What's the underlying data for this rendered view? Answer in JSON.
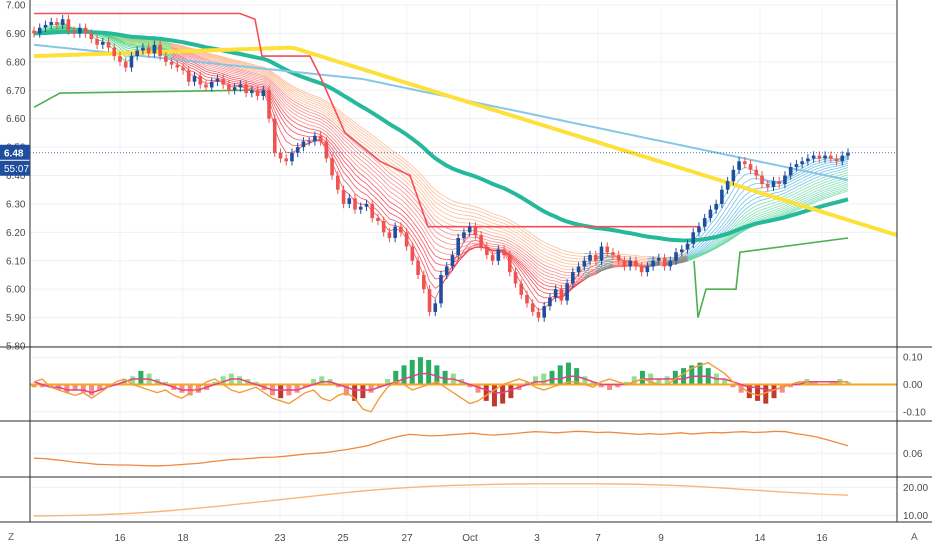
{
  "chart_data": [
    {
      "type": "candlestick",
      "title": "",
      "ylim": [
        5.8,
        7.0
      ],
      "yticks": [
        "7.00",
        "6.90",
        "6.80",
        "6.70",
        "6.60",
        "6.50",
        "6.40",
        "6.30",
        "6.20",
        "6.10",
        "6.00",
        "5.90",
        "5.80"
      ],
      "price_label": "6.48",
      "countdown_label": "55:07",
      "colors": {
        "up": "#1f4e9e",
        "down": "#ef5350",
        "ribbon_green": "#2ecc71",
        "ribbon_red": "#f23645",
        "ribbon_gray": "#8a8a8a",
        "slow_ma": "#26b89a",
        "mid_ma": "#87c6e6",
        "long_ma": "#fde13a",
        "stop_red": "#f44f57",
        "stop_green": "#4caf50"
      },
      "close": [
        6.9,
        6.92,
        6.93,
        6.94,
        6.93,
        6.95,
        6.91,
        6.9,
        6.92,
        6.9,
        6.88,
        6.86,
        6.87,
        6.85,
        6.82,
        6.8,
        6.78,
        6.82,
        6.84,
        6.85,
        6.83,
        6.86,
        6.82,
        6.8,
        6.79,
        6.78,
        6.77,
        6.73,
        6.75,
        6.72,
        6.71,
        6.73,
        6.74,
        6.72,
        6.7,
        6.71,
        6.72,
        6.69,
        6.7,
        6.68,
        6.7,
        6.6,
        6.48,
        6.46,
        6.45,
        6.48,
        6.5,
        6.52,
        6.52,
        6.54,
        6.52,
        6.46,
        6.4,
        6.35,
        6.3,
        6.32,
        6.28,
        6.29,
        6.3,
        6.25,
        6.24,
        6.2,
        6.18,
        6.22,
        6.2,
        6.15,
        6.1,
        6.05,
        6.0,
        5.92,
        5.95,
        6.05,
        6.08,
        6.12,
        6.18,
        6.2,
        6.22,
        6.19,
        6.15,
        6.12,
        6.1,
        6.14,
        6.12,
        6.06,
        6.02,
        5.98,
        5.95,
        5.92,
        5.9,
        5.94,
        5.97,
        6.0,
        5.96,
        6.02,
        6.06,
        6.08,
        6.1,
        6.12,
        6.1,
        6.15,
        6.13,
        6.12,
        6.1,
        6.08,
        6.1,
        6.08,
        6.06,
        6.08,
        6.1,
        6.11,
        6.08,
        6.1,
        6.13,
        6.14,
        6.16,
        6.2,
        6.22,
        6.25,
        6.28,
        6.3,
        6.35,
        6.38,
        6.42,
        6.45,
        6.44,
        6.42,
        6.4,
        6.37,
        6.36,
        6.38,
        6.37,
        6.4,
        6.43,
        6.44,
        6.45,
        6.46,
        6.47,
        6.46,
        6.47,
        6.46,
        6.45,
        6.47,
        6.48
      ]
    },
    {
      "type": "histogram",
      "ylim": [
        -0.13,
        0.13
      ],
      "yticks": [
        "0.10",
        "0.00",
        "-0.10"
      ],
      "values": [
        -0.01,
        -0.01,
        -0.01,
        -0.02,
        -0.03,
        -0.02,
        -0.03,
        -0.04,
        -0.02,
        -0.01,
        0.0,
        0.02,
        0.03,
        0.05,
        0.04,
        0.02,
        0.01,
        -0.02,
        -0.03,
        -0.04,
        -0.03,
        -0.02,
        0.01,
        0.03,
        0.04,
        0.03,
        0.02,
        0.01,
        -0.02,
        -0.04,
        -0.05,
        -0.04,
        -0.03,
        -0.01,
        0.02,
        0.03,
        0.02,
        -0.01,
        -0.04,
        -0.06,
        -0.05,
        -0.03,
        -0.01,
        0.02,
        0.05,
        0.07,
        0.09,
        0.1,
        0.09,
        0.07,
        0.05,
        0.04,
        0.02,
        -0.01,
        -0.03,
        -0.06,
        -0.08,
        -0.07,
        -0.05,
        -0.02,
        0.01,
        0.03,
        0.04,
        0.05,
        0.07,
        0.08,
        0.06,
        0.03,
        0.01,
        -0.01,
        -0.02,
        -0.01,
        0.01,
        0.03,
        0.05,
        0.04,
        0.02,
        0.03,
        0.05,
        0.06,
        0.07,
        0.08,
        0.06,
        0.04,
        0.02,
        -0.01,
        -0.03,
        -0.05,
        -0.06,
        -0.07,
        -0.05,
        -0.03,
        -0.01,
        0.01,
        0.02,
        0.01,
        0.0,
        0.01,
        0.02,
        0.01
      ],
      "line_a": [
        0.01,
        0.0,
        -0.01,
        -0.01,
        -0.02,
        -0.02,
        -0.02,
        -0.03,
        -0.02,
        -0.01,
        0.0,
        0.01,
        0.02,
        0.02,
        0.02,
        0.01,
        0.0,
        -0.01,
        -0.02,
        -0.02,
        -0.02,
        -0.01,
        0.0,
        0.01,
        0.02,
        0.02,
        0.01,
        0.0,
        -0.01,
        -0.02,
        -0.02,
        -0.02,
        -0.02,
        -0.01,
        0.0,
        0.01,
        0.01,
        0.0,
        -0.01,
        -0.02,
        -0.02,
        -0.02,
        -0.01,
        0.0,
        0.01,
        0.02,
        0.03,
        0.04,
        0.04,
        0.03,
        0.02,
        0.02,
        0.01,
        0.0,
        -0.01,
        -0.02,
        -0.03,
        -0.03,
        -0.02,
        -0.01,
        0.0,
        0.01,
        0.01,
        0.02,
        0.02,
        0.03,
        0.03,
        0.02,
        0.01,
        0.0,
        0.0,
        0.0,
        0.0,
        0.01,
        0.02,
        0.02,
        0.02,
        0.02,
        0.02,
        0.02,
        0.03,
        0.03,
        0.03,
        0.02,
        0.02,
        0.01,
        0.0,
        -0.01,
        -0.01,
        -0.02,
        -0.02,
        -0.01,
        0.0,
        0.0,
        0.01,
        0.01,
        0.01,
        0.01,
        0.01,
        0.01
      ],
      "line_b": [
        0.01,
        0.02,
        -0.01,
        -0.02,
        -0.03,
        -0.04,
        -0.03,
        -0.05,
        -0.03,
        -0.01,
        0.01,
        0.02,
        0.0,
        -0.01,
        -0.02,
        -0.03,
        -0.02,
        -0.04,
        -0.05,
        -0.03,
        -0.01,
        0.01,
        0.02,
        0.0,
        -0.02,
        -0.03,
        -0.02,
        -0.01,
        -0.03,
        -0.05,
        -0.06,
        -0.07,
        -0.05,
        -0.03,
        -0.02,
        -0.05,
        -0.06,
        -0.04,
        -0.03,
        -0.05,
        -0.09,
        -0.1,
        -0.05,
        -0.01,
        0.01,
        0.0,
        -0.02,
        -0.01,
        0.0,
        0.01,
        -0.01,
        -0.03,
        -0.05,
        -0.07,
        -0.06,
        -0.04,
        -0.02,
        0.0,
        0.01,
        0.02,
        0.01,
        -0.01,
        -0.02,
        -0.01,
        0.0,
        0.01,
        0.01,
        0.0,
        -0.01,
        0.01,
        0.02,
        0.01,
        0.0,
        0.01,
        0.02,
        0.01,
        0.0,
        0.0,
        0.02,
        0.04,
        0.06,
        0.07,
        0.08,
        0.06,
        0.04,
        0.01,
        -0.01,
        -0.03,
        -0.04,
        -0.03,
        -0.02,
        -0.01,
        0.0,
        0.01,
        0.01,
        0.0,
        0.0,
        0.0,
        0.01,
        0.01
      ]
    },
    {
      "type": "line",
      "ylim": [
        0.0,
        0.14
      ],
      "yticks": [
        "0.06"
      ],
      "values": [
        0.047,
        0.046,
        0.043,
        0.04,
        0.036,
        0.034,
        0.031,
        0.03,
        0.029,
        0.029,
        0.028,
        0.027,
        0.027,
        0.028,
        0.03,
        0.032,
        0.034,
        0.038,
        0.041,
        0.044,
        0.045,
        0.047,
        0.049,
        0.05,
        0.052,
        0.055,
        0.058,
        0.06,
        0.062,
        0.066,
        0.07,
        0.075,
        0.08,
        0.09,
        0.098,
        0.105,
        0.11,
        0.108,
        0.106,
        0.107,
        0.109,
        0.111,
        0.113,
        0.11,
        0.108,
        0.11,
        0.112,
        0.115,
        0.117,
        0.116,
        0.114,
        0.116,
        0.118,
        0.117,
        0.115,
        0.116,
        0.114,
        0.112,
        0.11,
        0.112,
        0.11,
        0.112,
        0.114,
        0.111,
        0.113,
        0.115,
        0.114,
        0.116,
        0.117,
        0.115,
        0.116,
        0.118,
        0.117,
        0.112,
        0.108,
        0.103,
        0.096,
        0.088,
        0.08
      ]
    },
    {
      "type": "line",
      "ylim": [
        8,
        23
      ],
      "yticks": [
        "20.00",
        "10.00"
      ],
      "values": [
        9.8,
        9.9,
        10.0,
        10.2,
        10.5,
        10.9,
        11.4,
        12.0,
        12.7,
        13.4,
        14.2,
        15.0,
        15.8,
        16.6,
        17.4,
        18.2,
        18.9,
        19.5,
        20.0,
        20.4,
        20.7,
        20.9,
        21.1,
        21.2,
        21.3,
        21.3,
        21.3,
        21.3,
        21.2,
        21.1,
        20.9,
        20.6,
        20.2,
        19.8,
        19.3,
        18.8,
        18.3,
        17.9,
        17.5,
        17.2
      ]
    }
  ],
  "x_axis": {
    "ticks": [
      "16",
      "18",
      "23",
      "25",
      "27",
      "Oct",
      "3",
      "7",
      "9",
      "14",
      "16"
    ]
  },
  "corner": {
    "left": "Z",
    "right": "A"
  }
}
